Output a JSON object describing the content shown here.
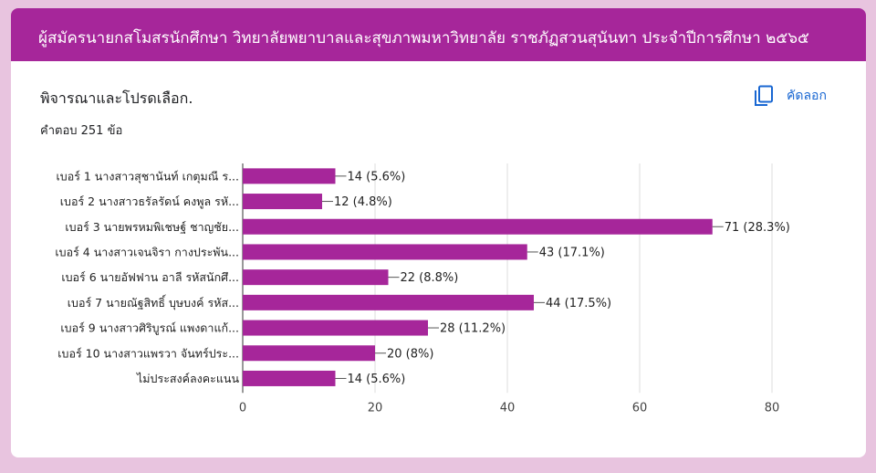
{
  "header": {
    "title": "ผู้สมัครนายกสโมสรนักศึกษา วิทยาลัยพยาบาลและสุขภาพมหาวิทยาลัย ราชภัฏสวนสุนันทา ประจำปีการศึกษา ๒๕๖๕"
  },
  "question": {
    "title": "พิจารณาและโปรดเลือก.",
    "responses": "คำตอบ 251 ข้อ",
    "copy_label": "คัดลอก",
    "copy_icon": "copy-icon"
  },
  "colors": {
    "header": "#a6269a",
    "bar": "#a6269a",
    "background": "#e8c4df",
    "copy": "#1967d2"
  },
  "chart_data": {
    "type": "bar",
    "orientation": "horizontal",
    "categories": [
      "เบอร์ 1 นางสาวสุชานันท์ เกตุมณี ร...",
      "เบอร์ 2 นางสาวธรัลรัดน์ คงพูล รหั...",
      "เบอร์ 3 นายพรหมพิเชษฐ์ ชาญชัย...",
      "เบอร์ 4 นางสาวเจนจิรา กางประพัน...",
      "เบอร์ 6 นายอัฟฟาน อาลี รหัสนักศึ...",
      "เบอร์ 7 นายณัฐสิทธิ์ บุษบงค์ รหัส...",
      "เบอร์ 9 นางสาวศิริบูรณ์ แพงดาแก้...",
      "เบอร์ 10 นางสาวแพรวา จันทร์ประ...",
      "ไม่ประสงค์ลงคะแนน"
    ],
    "values": [
      14,
      12,
      71,
      43,
      22,
      44,
      28,
      20,
      14
    ],
    "value_labels": [
      "14 (5.6%)",
      "12 (4.8%)",
      "71 (28.3%)",
      "43 (17.1%)",
      "22 (8.8%)",
      "44 (17.5%)",
      "28 (11.2%)",
      "20 (8%)",
      "14 (5.6%)"
    ],
    "xlim": [
      0,
      80
    ],
    "xticks": [
      0,
      20,
      40,
      60,
      80
    ],
    "grid": true,
    "title": "",
    "xlabel": "",
    "ylabel": ""
  }
}
